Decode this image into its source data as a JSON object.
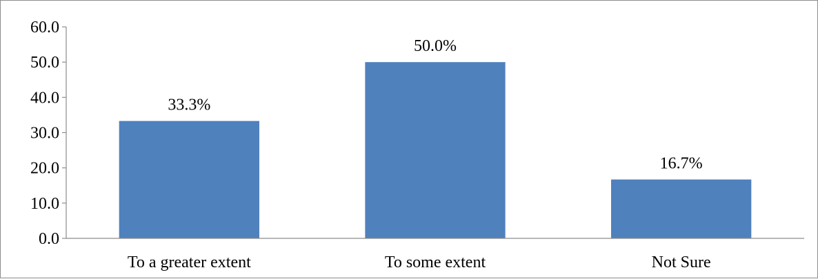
{
  "chart_data": {
    "type": "bar",
    "categories": [
      "To a greater extent",
      "To some extent",
      "Not Sure"
    ],
    "values": [
      33.3,
      50.0,
      16.7
    ],
    "data_labels": [
      "33.3%",
      "50.0%",
      "16.7%"
    ],
    "title": "",
    "xlabel": "",
    "ylabel": "",
    "ylim": [
      0,
      60
    ],
    "yticks": [
      0,
      10,
      20,
      30,
      40,
      50,
      60
    ],
    "ytick_labels": [
      "0.0",
      "10.0",
      "20.0",
      "30.0",
      "40.0",
      "50.0",
      "60.0"
    ],
    "grid": false,
    "legend": "none",
    "bar_color": "#4f81bd"
  }
}
